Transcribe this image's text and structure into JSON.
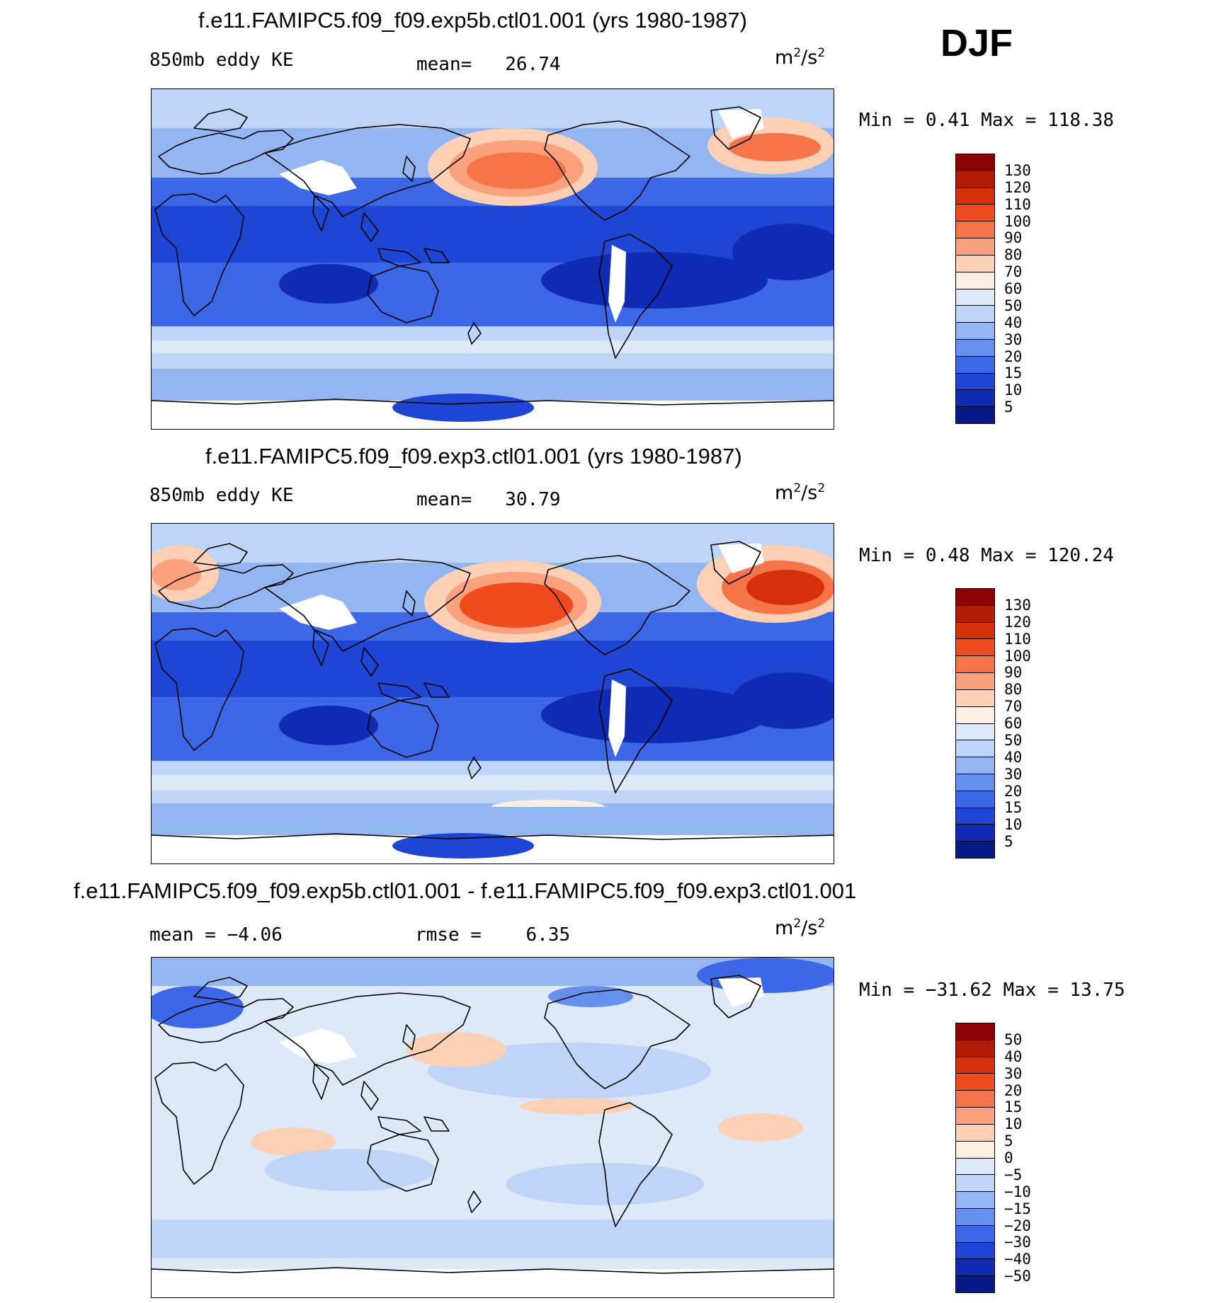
{
  "season": "DJF",
  "panels": [
    {
      "title": "f.e11.FAMIPC5.f09_f09.exp5b.ctl01.001 (yrs 1980-1987)",
      "left_label": "850mb eddy KE",
      "stat_label": "mean=",
      "stat_value": "26.74",
      "units_base": "m",
      "units_exp1": "2",
      "units_mid": "/s",
      "units_exp2": "2",
      "minmax": "Min =    0.41  Max  =  118.38",
      "field": "eddy_ke"
    },
    {
      "title": "f.e11.FAMIPC5.f09_f09.exp3.ctl01.001 (yrs 1980-1987)",
      "left_label": "850mb eddy KE",
      "stat_label": "mean=",
      "stat_value": "30.79",
      "units_base": "m",
      "units_exp1": "2",
      "units_mid": "/s",
      "units_exp2": "2",
      "minmax": "Min =    0.48  Max  =  120.24",
      "field": "eddy_ke"
    },
    {
      "title": "f.e11.FAMIPC5.f09_f09.exp5b.ctl01.001 - f.e11.FAMIPC5.f09_f09.exp3.ctl01.001",
      "left_label": "mean =   −4.06",
      "stat_label": "rmse =",
      "stat_value": "6.35",
      "units_base": "m",
      "units_exp1": "2",
      "units_mid": "/s",
      "units_exp2": "2",
      "minmax": "Min = −31.62  Max =   13.75",
      "field": "difference"
    }
  ],
  "colorbars": {
    "ke": {
      "labels": [
        "130",
        "120",
        "110",
        "100",
        "90",
        "80",
        "70",
        "60",
        "50",
        "40",
        "30",
        "20",
        "15",
        "10",
        "5"
      ],
      "colors": [
        "#8b0000",
        "#b01c05",
        "#d6300a",
        "#f04a1f",
        "#f77449",
        "#fba17d",
        "#fdcfb4",
        "#fdeee2",
        "#dde9f8",
        "#bed5f8",
        "#93b6f3",
        "#6690ee",
        "#3c67e6",
        "#1f45d5",
        "#0f2bb3",
        "#051a86"
      ]
    },
    "diff": {
      "labels": [
        "50",
        "40",
        "30",
        "20",
        "15",
        "10",
        "5",
        "0",
        "−5",
        "−10",
        "−15",
        "−20",
        "−30",
        "−40",
        "−50"
      ],
      "colors": [
        "#8b0000",
        "#b01c05",
        "#d6300a",
        "#f04a1f",
        "#f77449",
        "#fba17d",
        "#fdcfb4",
        "#fdeee2",
        "#dde9f8",
        "#bed5f8",
        "#93b6f3",
        "#6690ee",
        "#3c67e6",
        "#1f45d5",
        "#0f2bb3",
        "#051a86"
      ]
    }
  }
}
